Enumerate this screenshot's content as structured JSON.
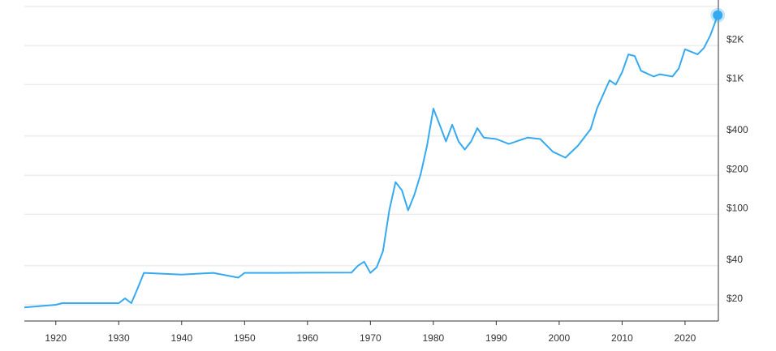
{
  "chart_data": {
    "type": "line",
    "color": "#35aaf0",
    "log_y": true,
    "grid": true,
    "x": [
      1915,
      1920,
      1921,
      1930,
      1931,
      1932,
      1933,
      1934,
      1940,
      1945,
      1949,
      1950,
      1955,
      1967,
      1968,
      1969,
      1970,
      1971,
      1972,
      1973,
      1974,
      1975,
      1976,
      1977,
      1978,
      1979,
      1980,
      1981,
      1982,
      1983,
      1984,
      1985,
      1986,
      1987,
      1988,
      1990,
      1992,
      1995,
      1997,
      1999,
      2001,
      2003,
      2005,
      2006,
      2008,
      2009,
      2010,
      2011,
      2012,
      2013,
      2015,
      2016,
      2018,
      2019,
      2020,
      2021,
      2022,
      2023,
      2024,
      2025.2
    ],
    "values": [
      19.1,
      20,
      20.6,
      20.6,
      22.4,
      20.6,
      26.7,
      35.3,
      34.2,
      35.3,
      32.4,
      35.3,
      35.3,
      35.5,
      40,
      43,
      35.3,
      39,
      51.8,
      107,
      177,
      153,
      107,
      142,
      204,
      338,
      652,
      490,
      364,
      490,
      364,
      315,
      364,
      461,
      390,
      380,
      348,
      390,
      380,
      303,
      273,
      338,
      452,
      652,
      1078,
      1000,
      1243,
      1708,
      1660,
      1278,
      1153,
      1200,
      1153,
      1330,
      1870,
      1790,
      1708,
      1913,
      2380,
      3424
    ],
    "xlim": [
      1915,
      2025.3
    ],
    "xticks": [
      1920,
      1930,
      1940,
      1950,
      1960,
      1970,
      1980,
      1990,
      2000,
      2010,
      2020
    ],
    "ylim": [
      15,
      4000
    ],
    "yticks": [
      {
        "value": 20,
        "label": "$20"
      },
      {
        "value": 40,
        "label": "$40"
      },
      {
        "value": 100,
        "label": "$100"
      },
      {
        "value": 200,
        "label": "$200"
      },
      {
        "value": 400,
        "label": "$400"
      },
      {
        "value": 1000,
        "label": "$1K"
      },
      {
        "value": 2000,
        "label": "$2K"
      }
    ]
  }
}
